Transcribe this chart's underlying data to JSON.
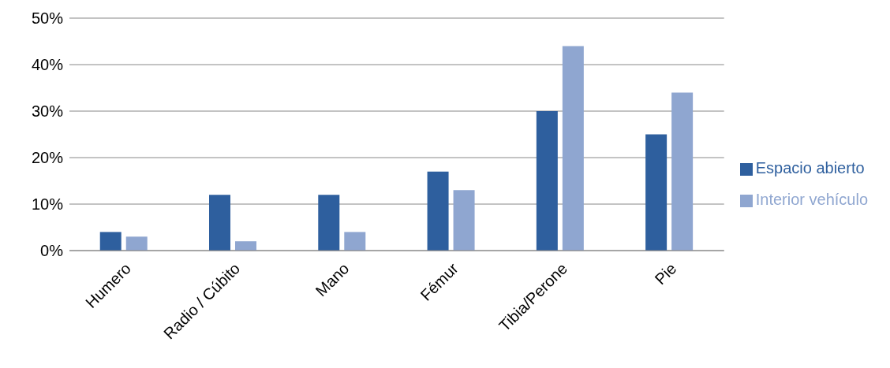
{
  "chart_data": {
    "type": "bar",
    "categories": [
      "Humero",
      "Radio / Cúbito",
      "Mano",
      "Fémur",
      "Tibia/Perone",
      "Pie"
    ],
    "series": [
      {
        "name": "Espacio abierto",
        "color": "#2e5f9e",
        "values": [
          4,
          12,
          12,
          17,
          30,
          25
        ]
      },
      {
        "name": "Interior vehículo",
        "color": "#8fa6d0",
        "values": [
          3,
          2,
          4,
          13,
          44,
          34
        ]
      }
    ],
    "ylim": [
      0,
      50
    ],
    "yticks": [
      {
        "value": 0,
        "label": "0%"
      },
      {
        "value": 10,
        "label": "10%"
      },
      {
        "value": 20,
        "label": "20%"
      },
      {
        "value": 30,
        "label": "30%"
      },
      {
        "value": 40,
        "label": "40%"
      },
      {
        "value": 50,
        "label": "50%"
      }
    ],
    "grid": "y",
    "legend": "right"
  }
}
